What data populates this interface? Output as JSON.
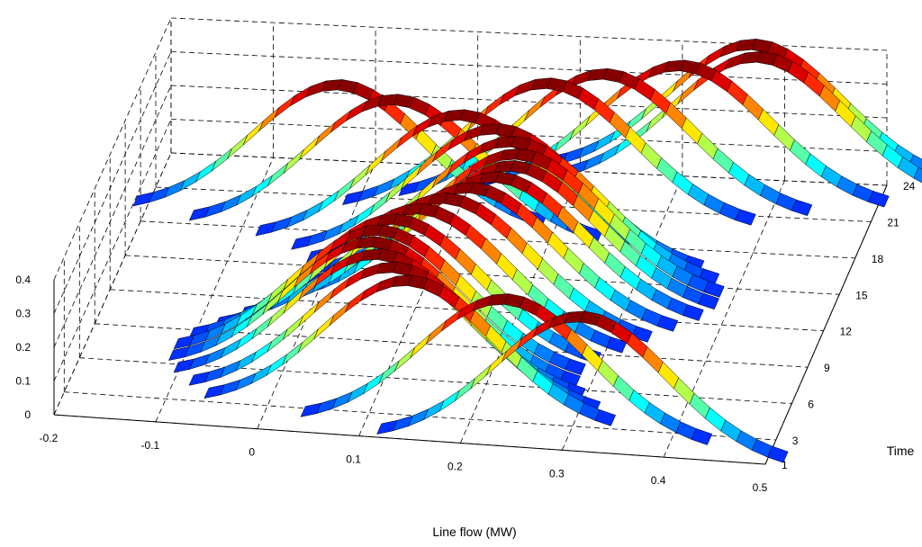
{
  "chart_data": {
    "type": "area",
    "title": "",
    "xlabel": "Line flow (MW)",
    "ylabel": "Time",
    "zlabel": "",
    "x_ticks": [
      "-0.2",
      "-0.1",
      "0",
      "0.1",
      "0.2",
      "0.3",
      "0.4",
      "0.5"
    ],
    "y_ticks": [
      "1",
      "3",
      "6",
      "9",
      "12",
      "15",
      "18",
      "21",
      "24"
    ],
    "z_ticks": [
      "0",
      "0.1",
      "0.2",
      "0.3",
      "0.4"
    ],
    "xlim": [
      -0.2,
      0.5
    ],
    "ylim": [
      1,
      24
    ],
    "zlim": [
      0,
      0.4
    ],
    "grid": true,
    "colormap": "jet",
    "distribution": "gaussian",
    "series": [
      {
        "time": 1,
        "mean": 0.32,
        "peak": 0.4
      },
      {
        "time": 2,
        "mean": 0.24,
        "peak": 0.4
      },
      {
        "time": 3,
        "mean": 0.14,
        "peak": 0.4
      },
      {
        "time": 4,
        "mean": 0.12,
        "peak": 0.4
      },
      {
        "time": 5,
        "mean": 0.1,
        "peak": 0.4
      },
      {
        "time": 6,
        "mean": 0.09,
        "peak": 0.4
      },
      {
        "time": 7,
        "mean": 0.09,
        "peak": 0.4
      },
      {
        "time": 8,
        "mean": 0.1,
        "peak": 0.4
      },
      {
        "time": 9,
        "mean": 0.12,
        "peak": 0.4
      },
      {
        "time": 10,
        "mean": 0.14,
        "peak": 0.4
      },
      {
        "time": 11,
        "mean": 0.16,
        "peak": 0.4
      },
      {
        "time": 12,
        "mean": 0.18,
        "peak": 0.4
      },
      {
        "time": 13,
        "mean": 0.19,
        "peak": 0.4
      },
      {
        "time": 14,
        "mean": 0.19,
        "peak": 0.4
      },
      {
        "time": 15,
        "mean": 0.18,
        "peak": 0.4
      },
      {
        "time": 16,
        "mean": 0.16,
        "peak": 0.4
      },
      {
        "time": 17,
        "mean": 0.12,
        "peak": 0.4
      },
      {
        "time": 18,
        "mean": 0.05,
        "peak": 0.4
      },
      {
        "time": 19,
        "mean": -0.01,
        "peak": 0.4
      },
      {
        "time": 20,
        "mean": 0.19,
        "peak": 0.4
      },
      {
        "time": 21,
        "mean": 0.24,
        "peak": 0.4
      },
      {
        "time": 22,
        "mean": 0.31,
        "peak": 0.4
      },
      {
        "time": 23,
        "mean": 0.38,
        "peak": 0.4
      },
      {
        "time": 24,
        "mean": 0.37,
        "peak": 0.4
      }
    ]
  }
}
